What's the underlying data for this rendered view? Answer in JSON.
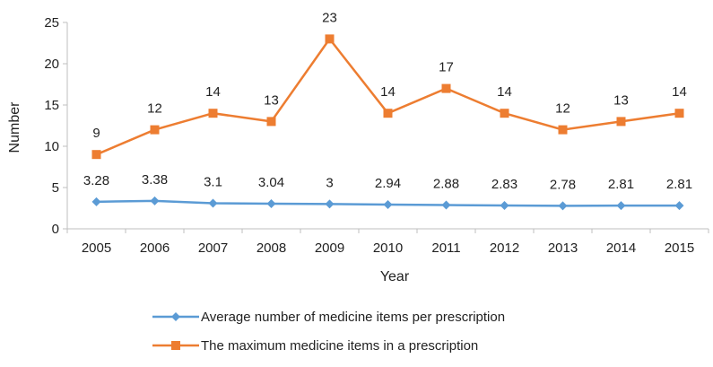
{
  "chart_data": {
    "type": "line",
    "xlabel": "Year",
    "ylabel": "Number",
    "categories": [
      "2005",
      "2006",
      "2007",
      "2008",
      "2009",
      "2010",
      "2011",
      "2012",
      "2013",
      "2014",
      "2015"
    ],
    "ylim": [
      0,
      25
    ],
    "yticks": [
      0,
      5,
      10,
      15,
      20,
      25
    ],
    "grid": false,
    "legend_position": "bottom",
    "series": [
      {
        "name": "Average number of medicine items per prescription",
        "color": "#5B9BD5",
        "marker": "diamond",
        "values": [
          3.28,
          3.38,
          3.1,
          3.04,
          3,
          2.94,
          2.88,
          2.83,
          2.78,
          2.81,
          2.81
        ]
      },
      {
        "name": "The maximum medicine items in a prescription",
        "color": "#ED7D31",
        "marker": "square",
        "values": [
          9,
          12,
          14,
          13,
          23,
          14,
          17,
          14,
          12,
          13,
          14
        ]
      }
    ]
  }
}
